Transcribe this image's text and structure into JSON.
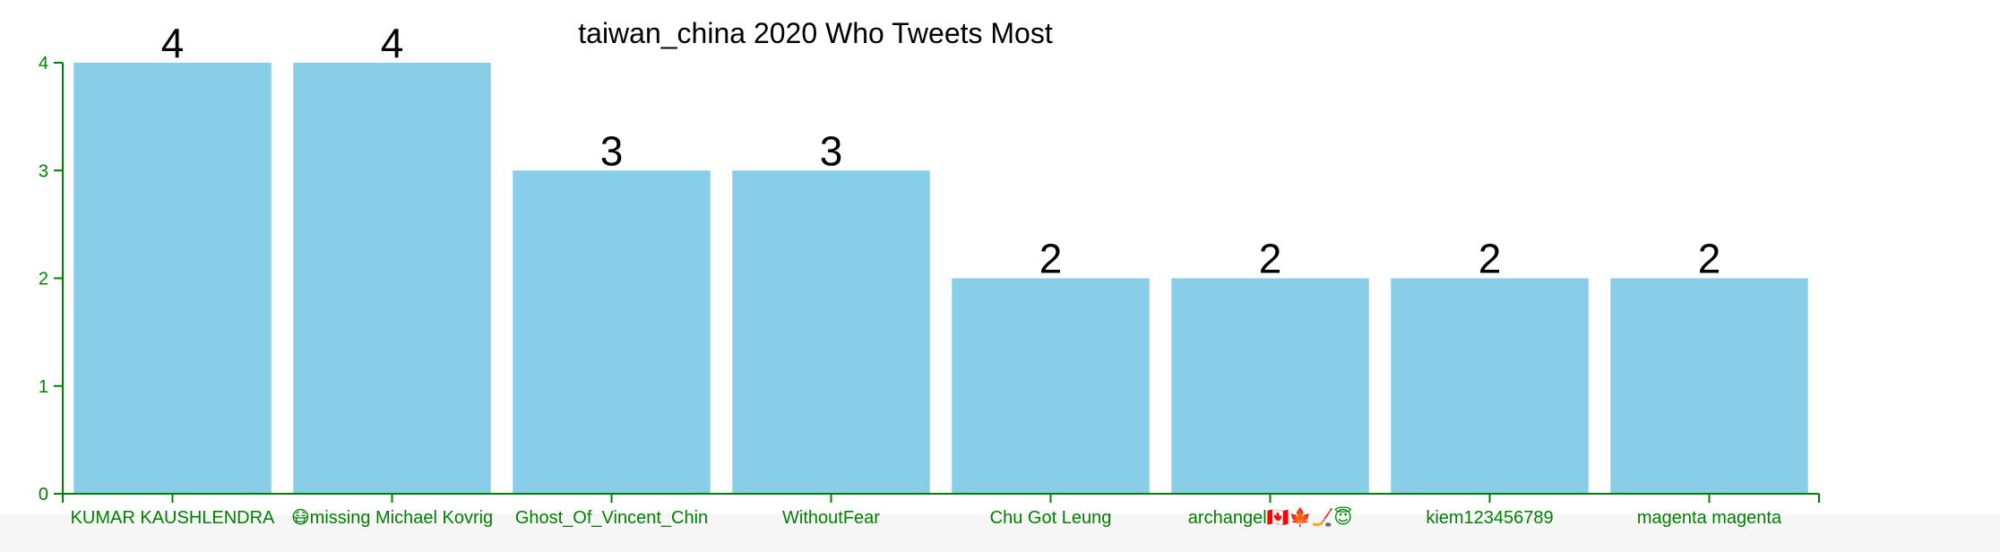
{
  "chart_data": {
    "type": "bar",
    "title": "taiwan_china 2020 Who Tweets Most",
    "xlabel": "",
    "ylabel": "",
    "categories": [
      "KUMAR KAUSHLENDRA",
      "😷missing Michael Kovrig",
      "Ghost_Of_Vincent_Chin",
      "WithoutFear",
      "Chu Got Leung",
      "archangel🇨🇦🍁🏒😇",
      "kiem123456789",
      "magenta magenta"
    ],
    "values": [
      4,
      4,
      3,
      3,
      2,
      2,
      2,
      2
    ],
    "ylim": [
      0,
      4
    ],
    "yticks": [
      0,
      1,
      2,
      3,
      4
    ],
    "grid": false,
    "legend": "none",
    "colors": {
      "bar": "#89CEE8",
      "axis": "#008000",
      "value_label": "#000000",
      "title": "#000000"
    }
  }
}
